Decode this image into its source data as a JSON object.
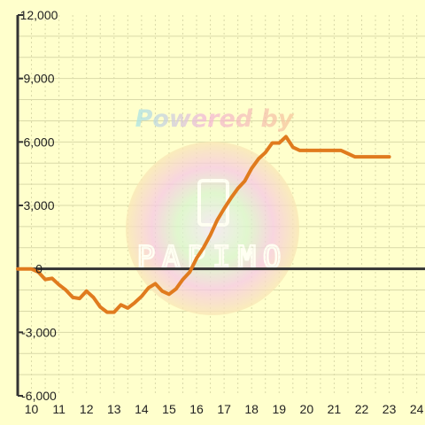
{
  "watermark": {
    "text": "Powered by",
    "logo_text": "PAPIMO"
  },
  "colors": {
    "background": "#ffffcc",
    "grid": "#d9d9a8",
    "axis": "#333333",
    "series": "#e07b1e"
  },
  "chart_data": {
    "type": "line",
    "title": "",
    "xlabel": "",
    "ylabel": "",
    "xlim": [
      9.5,
      24.3
    ],
    "ylim": [
      -6000,
      12000
    ],
    "x_ticks": [
      10,
      11,
      12,
      13,
      14,
      15,
      16,
      17,
      18,
      19,
      20,
      21,
      22,
      23,
      24
    ],
    "x_tick_labels": [
      "10",
      "11",
      "12",
      "13",
      "14",
      "15",
      "16",
      "17",
      "18",
      "19",
      "20",
      "21",
      "22",
      "23",
      "24"
    ],
    "y_ticks": [
      -6000,
      -3000,
      0,
      3000,
      6000,
      9000,
      12000
    ],
    "y_tick_labels": [
      "-6,000",
      "-3,000",
      "0",
      "3,000",
      "6,000",
      "9,000",
      "12,000"
    ],
    "grid": true,
    "series": [
      {
        "x": [
          9.5,
          10.0,
          10.25,
          10.5,
          10.75,
          11.0,
          11.25,
          11.5,
          11.75,
          12.0,
          12.25,
          12.5,
          12.75,
          13.0,
          13.25,
          13.5,
          13.75,
          14.0,
          14.25,
          14.5,
          14.75,
          15.0,
          15.25,
          15.5,
          15.75,
          16.0,
          16.25,
          16.5,
          16.75,
          17.0,
          17.25,
          17.5,
          17.75,
          18.0,
          18.25,
          18.5,
          18.75,
          19.0,
          19.25,
          19.5,
          19.75,
          20.0,
          20.25,
          20.5,
          20.75,
          21.0,
          21.25,
          21.5,
          21.75,
          22.0,
          22.25,
          22.5,
          22.75,
          23.0
        ],
        "y": [
          0,
          0,
          -150,
          -500,
          -450,
          -750,
          -1000,
          -1350,
          -1400,
          -1050,
          -1350,
          -1800,
          -2050,
          -2050,
          -1700,
          -1850,
          -1600,
          -1300,
          -900,
          -700,
          -1050,
          -1200,
          -950,
          -500,
          -150,
          500,
          1000,
          1600,
          2300,
          2850,
          3350,
          3800,
          4150,
          4750,
          5200,
          5500,
          5950,
          5950,
          6250,
          5750,
          5600,
          5600,
          5600,
          5600,
          5600,
          5600,
          5600,
          5450,
          5300,
          5300,
          5300,
          5300,
          5300,
          5300
        ]
      }
    ]
  }
}
